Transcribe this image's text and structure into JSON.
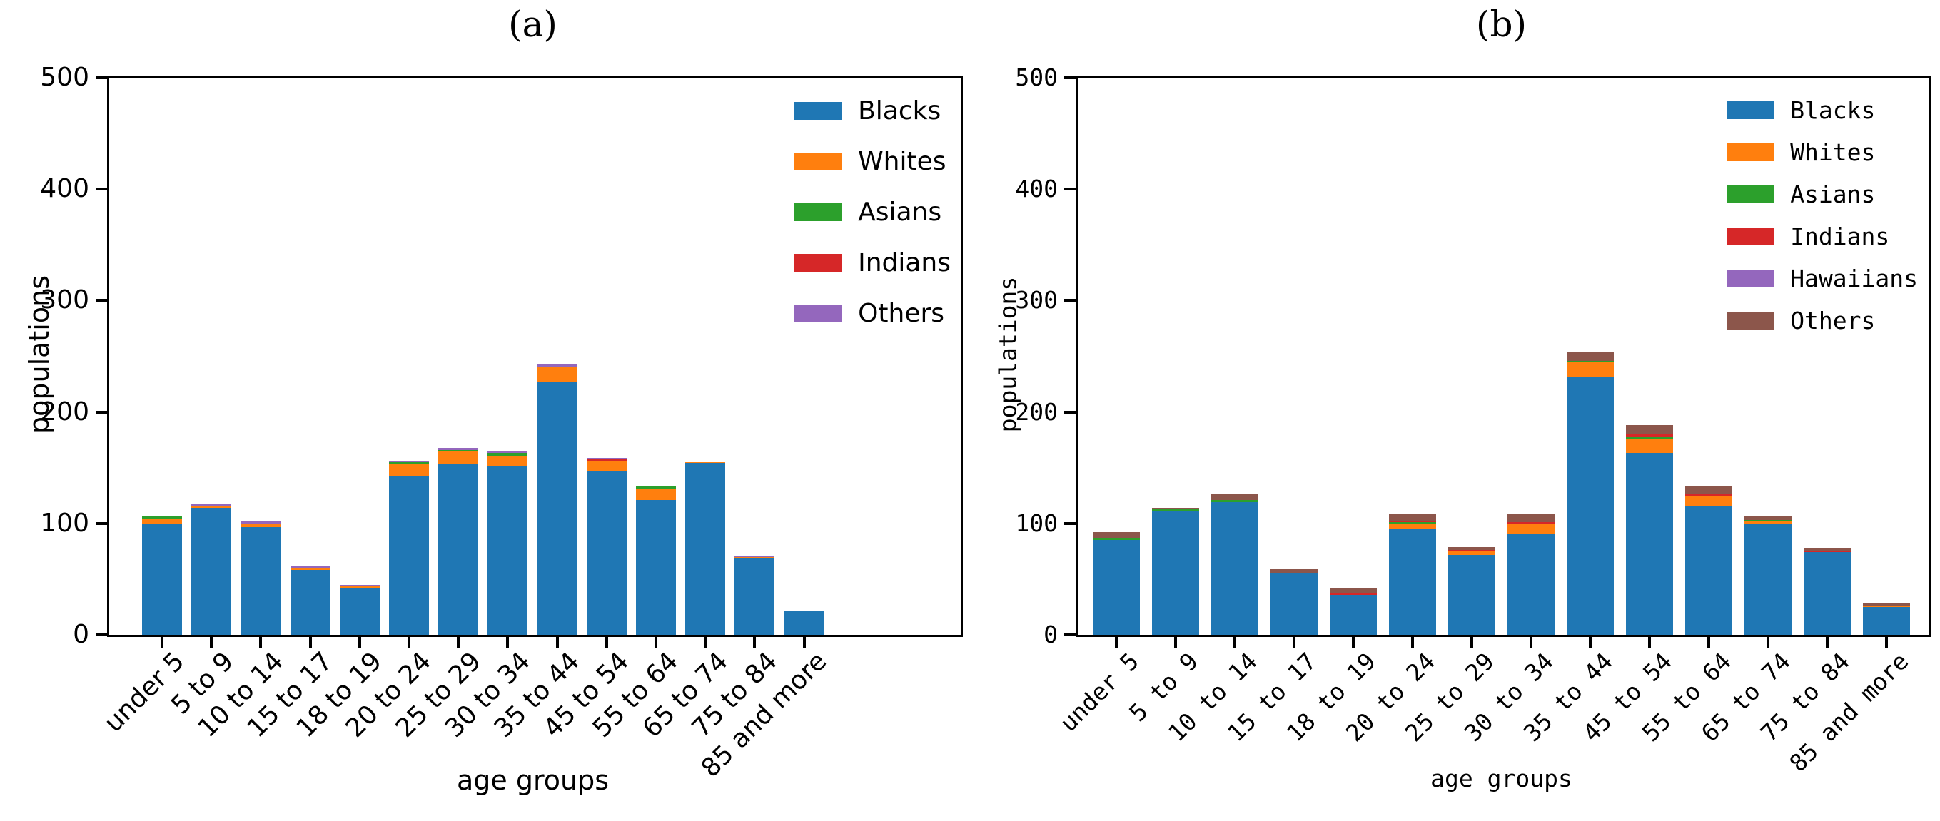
{
  "chart_data": [
    {
      "type": "bar",
      "stacked": true,
      "title": "(a)",
      "xlabel": "age groups",
      "ylabel": "populations",
      "ylim": [
        0,
        500
      ],
      "yticks": [
        0,
        100,
        200,
        300,
        400,
        500
      ],
      "grid": false,
      "legend_position": "upper right",
      "categories": [
        "under 5",
        "5 to 9",
        "10 to 14",
        "15 to 17",
        "18 to 19",
        "20 to 24",
        "25 to 29",
        "30 to 34",
        "35 to 44",
        "45 to 54",
        "55 to 64",
        "65 to 74",
        "75 to 84",
        "85 and more"
      ],
      "series": [
        {
          "name": "Blacks",
          "color": "#1f77b4",
          "values": [
            100,
            114,
            97,
            58,
            42,
            142,
            153,
            151,
            227,
            147,
            121,
            154,
            69,
            21
          ]
        },
        {
          "name": "Whites",
          "color": "#ff7f0e",
          "values": [
            4,
            2,
            3,
            2,
            2,
            11,
            12,
            10,
            13,
            9,
            10,
            1,
            1,
            0
          ]
        },
        {
          "name": "Asians",
          "color": "#2ca02c",
          "values": [
            2,
            0,
            0,
            0,
            0,
            2,
            1,
            2,
            0,
            0,
            2,
            0,
            0,
            0
          ]
        },
        {
          "name": "Indians",
          "color": "#d62728",
          "values": [
            0,
            0,
            0,
            0,
            0,
            0,
            0,
            0,
            0,
            2,
            0,
            0,
            0,
            0
          ]
        },
        {
          "name": "Others",
          "color": "#9467bd",
          "values": [
            0,
            1,
            2,
            2,
            1,
            1,
            2,
            2,
            3,
            1,
            1,
            0,
            1,
            1
          ]
        }
      ]
    },
    {
      "type": "bar",
      "stacked": true,
      "title": "(b)",
      "xlabel": "age groups",
      "ylabel": "populations",
      "ylim": [
        0,
        500
      ],
      "yticks": [
        0,
        100,
        200,
        300,
        400,
        500
      ],
      "grid": false,
      "legend_position": "upper right",
      "categories": [
        "under 5",
        "5 to 9",
        "10 to 14",
        "15 to 17",
        "18 to 19",
        "20 to 24",
        "25 to 29",
        "30 to 34",
        "35 to 44",
        "45 to 54",
        "55 to 64",
        "65 to 74",
        "75 to 84",
        "85 and more"
      ],
      "series": [
        {
          "name": "Blacks",
          "color": "#1f77b4",
          "values": [
            85,
            111,
            119,
            55,
            36,
            95,
            72,
            91,
            232,
            163,
            116,
            99,
            74,
            25
          ]
        },
        {
          "name": "Whites",
          "color": "#ff7f0e",
          "values": [
            0,
            0,
            0,
            0,
            0,
            5,
            3,
            8,
            13,
            13,
            9,
            3,
            0,
            1
          ]
        },
        {
          "name": "Asians",
          "color": "#2ca02c",
          "values": [
            2,
            2,
            2,
            1,
            0,
            1,
            0,
            1,
            1,
            2,
            0,
            1,
            0,
            0
          ]
        },
        {
          "name": "Indians",
          "color": "#d62728",
          "values": [
            0,
            0,
            0,
            0,
            1,
            1,
            1,
            1,
            0,
            2,
            2,
            0,
            1,
            0
          ]
        },
        {
          "name": "Hawaiians",
          "color": "#9467bd",
          "values": [
            0,
            0,
            0,
            0,
            0,
            0,
            0,
            0,
            0,
            0,
            0,
            0,
            0,
            0
          ]
        },
        {
          "name": "Others",
          "color": "#8c564b",
          "values": [
            5,
            1,
            5,
            3,
            5,
            6,
            3,
            7,
            8,
            8,
            6,
            4,
            3,
            2
          ]
        }
      ]
    }
  ]
}
